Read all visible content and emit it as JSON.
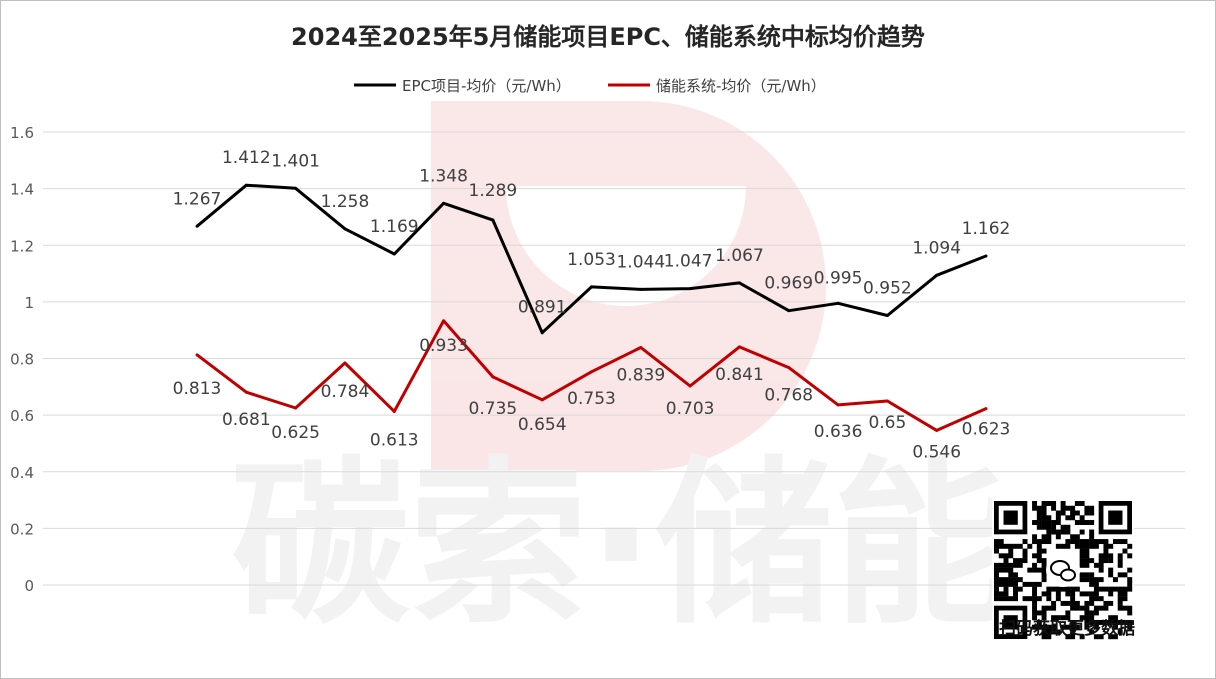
{
  "chart_data": {
    "type": "line",
    "title": "2024至2025年5月储能项目EPC、储能系统中标均价趋势",
    "xlabel": "",
    "ylabel": "",
    "ylim": [
      0,
      1.6
    ],
    "yticks": [
      "0",
      "0.2",
      "0.4",
      "0.6",
      "0.8",
      "1",
      "1.2",
      "1.4",
      "1.6"
    ],
    "grid": true,
    "legend_position": "top",
    "point_count": 17,
    "series": [
      {
        "name": "EPC项目-均价（元/Wh）",
        "color": "#000000",
        "values": [
          1.267,
          1.412,
          1.401,
          1.258,
          1.169,
          1.348,
          1.289,
          0.891,
          1.053,
          1.044,
          1.047,
          1.067,
          0.969,
          0.995,
          0.952,
          1.094,
          1.162
        ],
        "labels": [
          "1.267",
          "1.412",
          "1.401",
          "1.258",
          "1.169",
          "1.348",
          "1.289",
          "0.891",
          "1.053",
          "1.044",
          "1.047",
          "1.067",
          "0.969",
          "0.995",
          "0.952",
          "1.094",
          "1.162"
        ]
      },
      {
        "name": "储能系统-均价（元/Wh）",
        "color": "#c00000",
        "values": [
          0.813,
          0.681,
          0.625,
          0.784,
          0.613,
          0.933,
          0.735,
          0.654,
          0.753,
          0.839,
          0.703,
          0.841,
          0.768,
          0.636,
          0.65,
          0.546,
          0.623
        ],
        "labels": [
          "0.813",
          "0.681",
          "0.625",
          "0.784",
          "0.613",
          "0.933",
          "0.735",
          "0.654",
          "0.753",
          "0.839",
          "0.703",
          "0.841",
          "0.768",
          "0.636",
          "0.65",
          "0.546",
          "0.623"
        ]
      }
    ]
  },
  "watermark": {
    "text": "碳索·储能",
    "color": "#f2c9c9"
  },
  "qr": {
    "caption": "扫码获取更多数据",
    "center_icon": "wechat-icon"
  }
}
